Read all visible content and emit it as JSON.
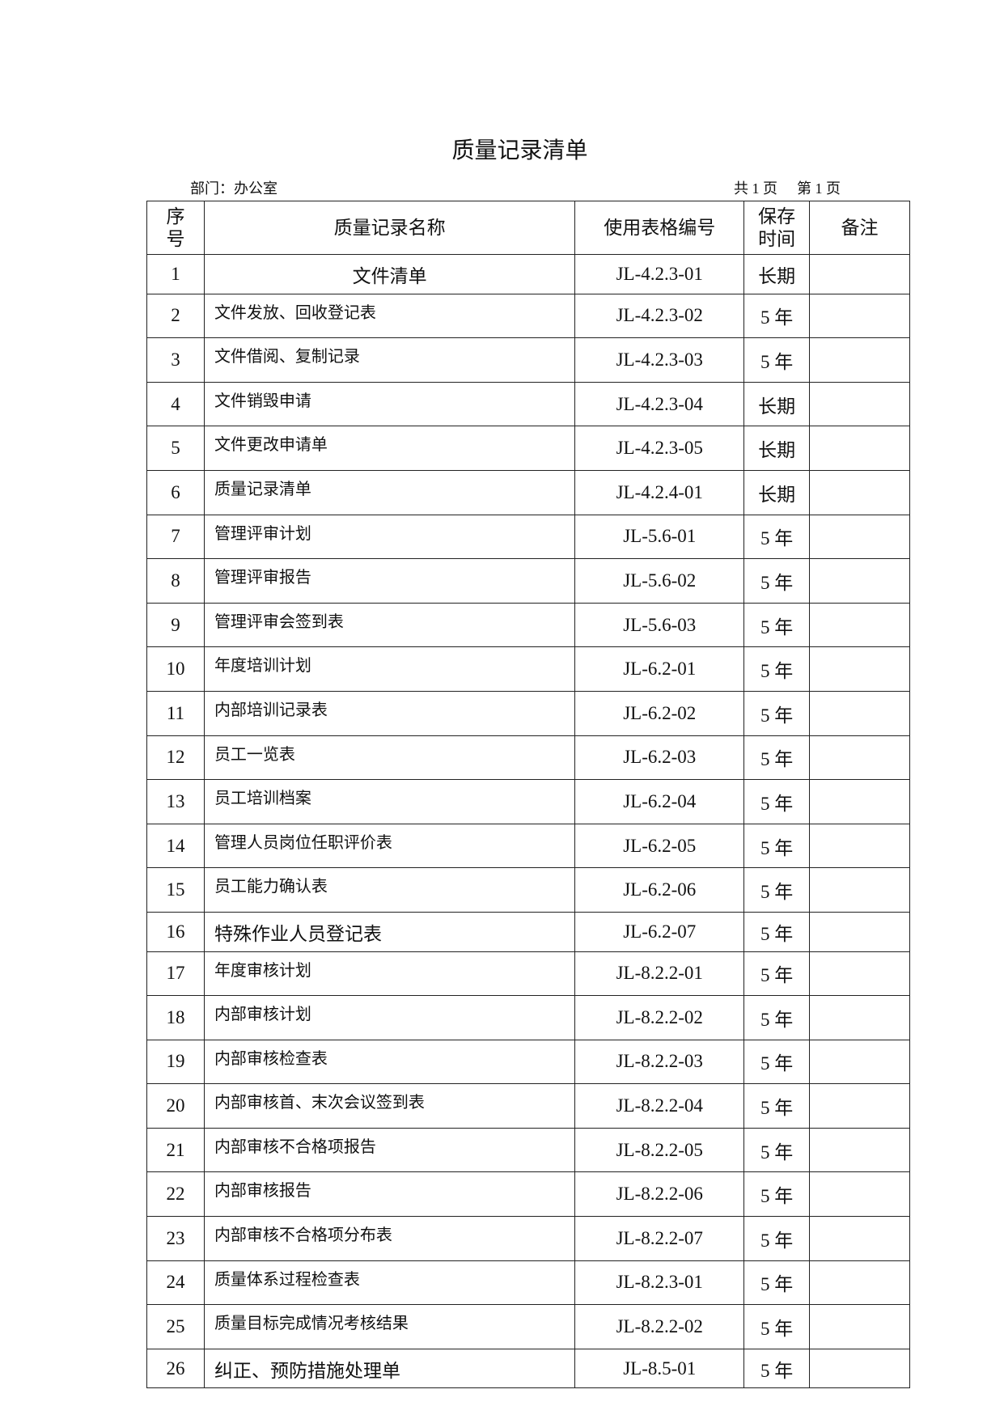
{
  "title": "质量记录清单",
  "department": "部门：办公室",
  "total_pages": "共 1 页",
  "current_page": "第 1 页",
  "headers": {
    "no": "序号",
    "name": "质量记录名称",
    "code": "使用表格编号",
    "retention": "保存时间",
    "remarks": "备注"
  },
  "rows": [
    {
      "no": "1",
      "name": "文件清单",
      "code": "JL-4.2.3-01",
      "retention": "长期"
    },
    {
      "no": "2",
      "name": "文件发放、回收登记表",
      "code": "JL-4.2.3-02",
      "retention": "5 年"
    },
    {
      "no": "3",
      "name": "文件借阅、复制记录",
      "code": "JL-4.2.3-03",
      "retention": "5 年"
    },
    {
      "no": "4",
      "name": "文件销毁申请",
      "code": "JL-4.2.3-04",
      "retention": "长期"
    },
    {
      "no": "5",
      "name": "文件更改申请单",
      "code": "JL-4.2.3-05",
      "retention": "长期"
    },
    {
      "no": "6",
      "name": "质量记录清单",
      "code": "JL-4.2.4-01",
      "retention": "长期"
    },
    {
      "no": "7",
      "name": "管理评审计划",
      "code": "JL-5.6-01",
      "retention": "5 年"
    },
    {
      "no": "8",
      "name": "管理评审报告",
      "code": "JL-5.6-02",
      "retention": "5 年"
    },
    {
      "no": "9",
      "name": "管理评审会签到表",
      "code": "JL-5.6-03",
      "retention": "5 年"
    },
    {
      "no": "10",
      "name": "年度培训计划",
      "code": "JL-6.2-01",
      "retention": "5 年"
    },
    {
      "no": "11",
      "name": "内部培训记录表",
      "code": "JL-6.2-02",
      "retention": "5 年"
    },
    {
      "no": "12",
      "name": "员工一览表",
      "code": "JL-6.2-03",
      "retention": "5 年"
    },
    {
      "no": "13",
      "name": "员工培训档案",
      "code": "JL-6.2-04",
      "retention": "5 年"
    },
    {
      "no": "14",
      "name": "管理人员岗位任职评价表",
      "code": "JL-6.2-05",
      "retention": "5 年"
    },
    {
      "no": "15",
      "name": "员工能力确认表",
      "code": "JL-6.2-06",
      "retention": "5 年"
    },
    {
      "no": "16",
      "name": "特殊作业人员登记表",
      "code": "JL-6.2-07",
      "retention": "5 年"
    },
    {
      "no": "17",
      "name": "年度审核计划",
      "code": "JL-8.2.2-01",
      "retention": "5 年"
    },
    {
      "no": "18",
      "name": "内部审核计划",
      "code": "JL-8.2.2-02",
      "retention": "5 年"
    },
    {
      "no": "19",
      "name": "内部审核检查表",
      "code": "JL-8.2.2-03",
      "retention": "5 年"
    },
    {
      "no": "20",
      "name": "内部审核首、末次会议签到表",
      "code": "JL-8.2.2-04",
      "retention": "5 年"
    },
    {
      "no": "21",
      "name": "内部审核不合格项报告",
      "code": "JL-8.2.2-05",
      "retention": "5 年"
    },
    {
      "no": "22",
      "name": "内部审核报告",
      "code": "JL-8.2.2-06",
      "retention": "5 年"
    },
    {
      "no": "23",
      "name": "内部审核不合格项分布表",
      "code": "JL-8.2.2-07",
      "retention": "5 年"
    },
    {
      "no": "24",
      "name": "质量体系过程检查表",
      "code": "JL-8.2.3-01",
      "retention": "5 年"
    },
    {
      "no": "25",
      "name": "质量目标完成情况考核结果",
      "code": "JL-8.2.2-02",
      "retention": "5 年"
    },
    {
      "no": "26",
      "name": "纠正、预防措施处理单",
      "code": "JL-8.5-01",
      "retention": "5 年"
    }
  ]
}
